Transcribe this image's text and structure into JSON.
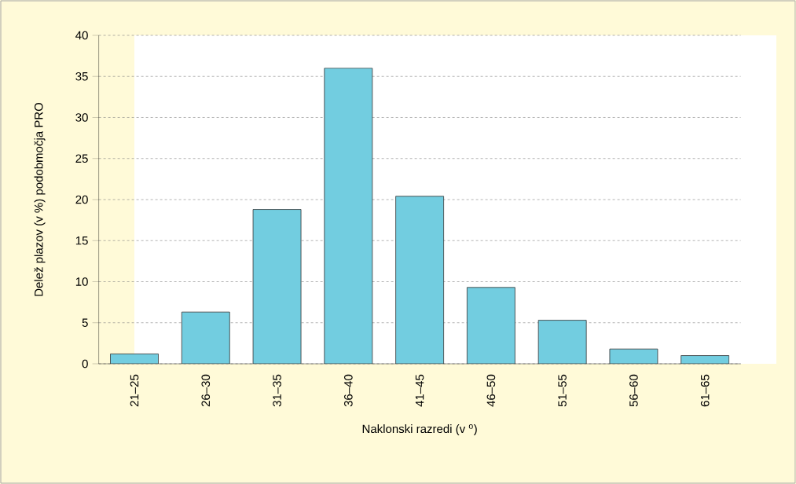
{
  "chart_data": {
    "type": "bar",
    "xlabel": "Naklonski razredi (v $^{o}$)",
    "ylabel": "Delež plazov (v %) podobmočja PRO",
    "categories": [
      "21–25",
      "26–30",
      "31–35",
      "36–40",
      "41–45",
      "46–50",
      "51–55",
      "56–60",
      "61–65"
    ],
    "values": [
      1.2,
      6.3,
      18.8,
      36.0,
      20.4,
      9.3,
      5.3,
      1.8,
      1.0
    ],
    "color": "#72cde0",
    "ylim": [
      0,
      40
    ],
    "yticks": [
      0,
      5,
      10,
      15,
      20,
      25,
      30,
      35,
      40
    ],
    "grid": "y"
  }
}
